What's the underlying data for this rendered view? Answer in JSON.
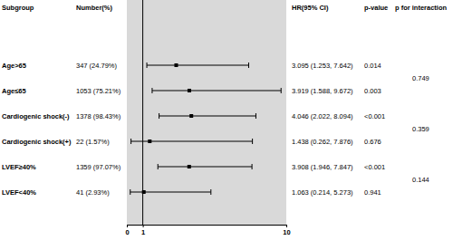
{
  "chart_data": {
    "type": "forest",
    "columns": [
      "Subgroup",
      "Number(%)",
      "HR(95% CI)",
      "p-value",
      "p for interaction"
    ],
    "rows": [
      {
        "subgroup": "Age>65",
        "number": "347 (24.79%)",
        "hr": 3.095,
        "lo": 1.253,
        "hi": 7.642,
        "hr_label": "3.095 (1.253, 7.642)",
        "p": "0.014"
      },
      {
        "subgroup": "Age≤65",
        "number": "1053 (75.21%)",
        "hr": 3.919,
        "lo": 1.588,
        "hi": 9.672,
        "hr_label": "3.919 (1.588, 9.672)",
        "p": "0.003"
      },
      {
        "subgroup": "Cardiogenic shock(-)",
        "number": "1378 (98.43%)",
        "hr": 4.046,
        "lo": 2.022,
        "hi": 8.094,
        "hr_label": "4.046 (2.022, 8.094)",
        "p": "<0.001"
      },
      {
        "subgroup": "Cardiogenic shock(+)",
        "number": "22 (1.57%)",
        "hr": 1.438,
        "lo": 0.262,
        "hi": 7.876,
        "hr_label": "1.438 (0.262, 7.876)",
        "p": "0.676"
      },
      {
        "subgroup": "LVEF≥40%",
        "number": "1359 (97.07%)",
        "hr": 3.908,
        "lo": 1.946,
        "hi": 7.847,
        "hr_label": "3.908 (1.946, 7.847)",
        "p": "<0.001"
      },
      {
        "subgroup": "LVEF<40%",
        "number": "41 (2.93%)",
        "hr": 1.063,
        "lo": 0.214,
        "hi": 5.273,
        "hr_label": "1.063 (0.214, 5.273)",
        "p": "0.941"
      }
    ],
    "p_interaction": [
      "0.749",
      "0.359",
      "0.144"
    ],
    "ref_line": 1,
    "xlim": [
      0,
      10
    ],
    "xticks": [
      0,
      1,
      10
    ],
    "color": "#000000"
  }
}
